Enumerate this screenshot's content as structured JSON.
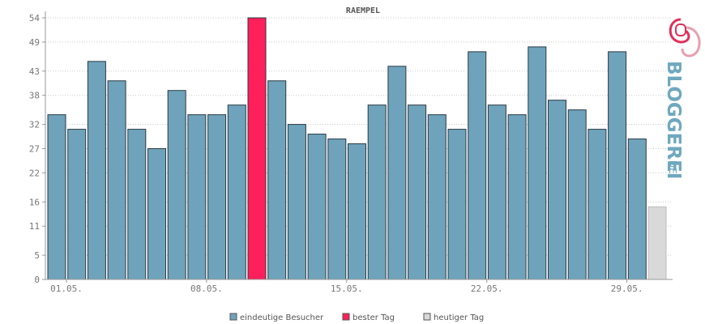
{
  "chart_data": {
    "type": "bar",
    "title": "RAEMPEL",
    "yticks": [
      0,
      5,
      11,
      16,
      22,
      27,
      32,
      38,
      43,
      49,
      54
    ],
    "ylim": [
      0,
      54
    ],
    "xtick_labels": [
      {
        "label": "01.05.",
        "index": 1
      },
      {
        "label": "08.05.",
        "index": 8
      },
      {
        "label": "15.05.",
        "index": 15
      },
      {
        "label": "22.05.",
        "index": 22
      },
      {
        "label": "29.05.",
        "index": 29
      }
    ],
    "values": [
      34,
      31,
      45,
      41,
      31,
      27,
      39,
      34,
      34,
      36,
      54,
      41,
      32,
      30,
      29,
      28,
      36,
      44,
      36,
      34,
      31,
      47,
      36,
      34,
      48,
      37,
      35,
      31,
      47,
      29,
      15
    ],
    "best_index": 10,
    "today_index": 30,
    "grid": true,
    "colors": {
      "normal": "#6fa3bb",
      "best": "#ff1f5a",
      "today": "#d9d9d9",
      "bar_stroke": "#2a3a44",
      "today_stroke": "#bdbdbd"
    },
    "legend": [
      {
        "label": "eindeutige Besucher",
        "color": "#6fa3bb"
      },
      {
        "label": "bester Tag",
        "color": "#ff1f5a"
      },
      {
        "label": "heutiger Tag",
        "color": "#d9d9d9"
      }
    ]
  },
  "logo": {
    "text": "BLOGGEREI",
    "suffix": ".DE"
  }
}
